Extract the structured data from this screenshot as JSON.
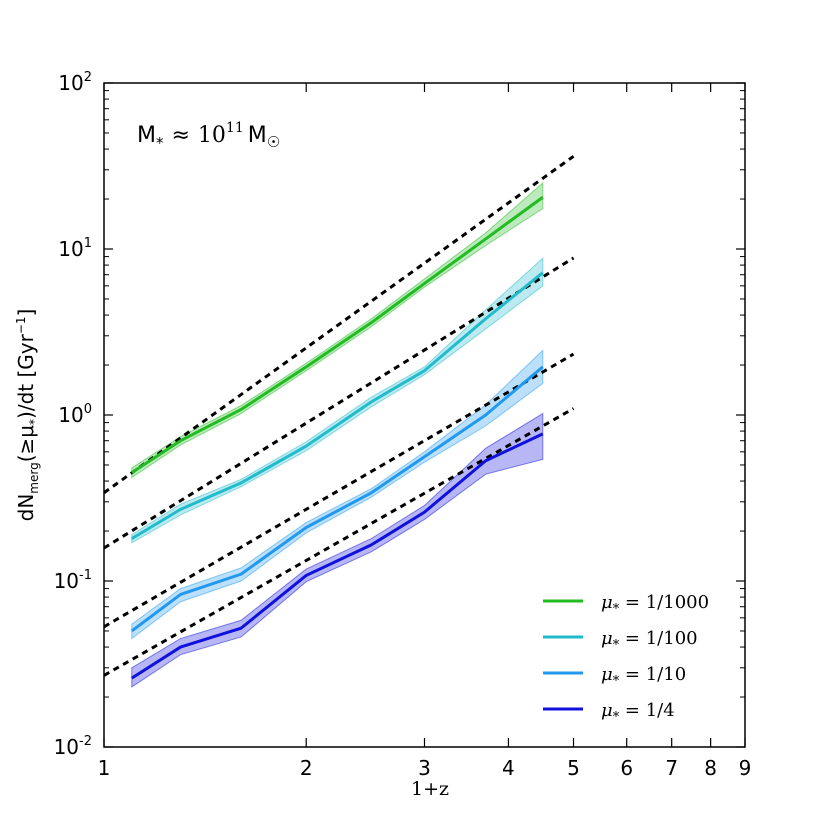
{
  "chart_data": {
    "type": "line",
    "scale": {
      "x": "log",
      "y": "log"
    },
    "xlabel": "1+z",
    "ylabel": "dN_merg(≥μ*)/dt [Gyr⁻¹]",
    "ylabel_parts": {
      "main": "dN",
      "sub": "merg",
      "arg": "(≥μ",
      "arg_sub": "*",
      "close": ")/dt [Gyr",
      "sup": "−1",
      "end": "]"
    },
    "xlim": [
      1,
      9
    ],
    "ylim": [
      0.01,
      100
    ],
    "x_ticks": [
      {
        "value": 1,
        "label": "1"
      },
      {
        "value": 2,
        "label": "2"
      },
      {
        "value": 3,
        "label": "3"
      },
      {
        "value": 4,
        "label": "4"
      },
      {
        "value": 5,
        "label": "5"
      },
      {
        "value": 6,
        "label": "6"
      },
      {
        "value": 7,
        "label": "7"
      },
      {
        "value": 8,
        "label": "8"
      },
      {
        "value": 9,
        "label": "9"
      }
    ],
    "y_ticks": [
      {
        "value": 0.01,
        "base": "10",
        "exp": "-2"
      },
      {
        "value": 0.1,
        "base": "10",
        "exp": "-1"
      },
      {
        "value": 1,
        "base": "10",
        "exp": "0"
      },
      {
        "value": 10,
        "base": "10",
        "exp": "1"
      },
      {
        "value": 100,
        "base": "10",
        "exp": "2"
      }
    ],
    "annotation": {
      "m": "M",
      "sub": "*",
      "approx": "≈",
      "base": "10",
      "exp": "11",
      "unit": "M",
      "unit_sub": "☉"
    },
    "x": [
      1.1,
      1.3,
      1.6,
      2.0,
      2.5,
      3.0,
      3.7,
      4.5
    ],
    "series": [
      {
        "name": "μ* = 1/1000",
        "color": "#22bb22",
        "values": [
          0.45,
          0.7,
          1.08,
          1.95,
          3.6,
          6.2,
          11.5,
          20.5
        ],
        "lower": [
          0.42,
          0.66,
          1.02,
          1.85,
          3.4,
          5.9,
          10.5,
          17.5
        ],
        "upper": [
          0.48,
          0.74,
          1.14,
          2.05,
          3.8,
          6.6,
          12.5,
          25.0
        ],
        "fit": {
          "amp": 0.34,
          "slope": 2.9,
          "x_range": [
            1.0,
            5.0
          ]
        }
      },
      {
        "name": "μ* = 1/100",
        "color": "#22bbcc",
        "values": [
          0.18,
          0.27,
          0.39,
          0.65,
          1.2,
          1.85,
          3.8,
          7.2
        ],
        "lower": [
          0.17,
          0.25,
          0.37,
          0.61,
          1.12,
          1.75,
          3.3,
          6.0
        ],
        "upper": [
          0.19,
          0.29,
          0.41,
          0.69,
          1.28,
          1.95,
          4.3,
          8.8
        ],
        "fit": {
          "amp": 0.158,
          "slope": 2.5,
          "x_range": [
            1.0,
            5.0
          ]
        }
      },
      {
        "name": "μ* = 1/10",
        "color": "#2299ee",
        "values": [
          0.05,
          0.083,
          0.11,
          0.21,
          0.34,
          0.56,
          1.0,
          1.95
        ],
        "lower": [
          0.045,
          0.075,
          0.1,
          0.195,
          0.32,
          0.52,
          0.86,
          1.55
        ],
        "upper": [
          0.055,
          0.09,
          0.12,
          0.225,
          0.36,
          0.6,
          1.15,
          2.45
        ],
        "fit": {
          "amp": 0.053,
          "slope": 2.35,
          "x_range": [
            1.0,
            5.0
          ]
        }
      },
      {
        "name": "μ* = 1/4",
        "color": "#1111dd",
        "values": [
          0.026,
          0.04,
          0.052,
          0.108,
          0.165,
          0.26,
          0.53,
          0.77
        ],
        "lower": [
          0.023,
          0.036,
          0.046,
          0.099,
          0.15,
          0.235,
          0.44,
          0.54
        ],
        "upper": [
          0.03,
          0.045,
          0.058,
          0.118,
          0.18,
          0.285,
          0.63,
          1.02
        ],
        "fit": {
          "amp": 0.027,
          "slope": 2.3,
          "x_range": [
            1.0,
            5.0
          ]
        }
      }
    ],
    "legend": {
      "placement": "lower-right",
      "entries": [
        {
          "label": "μ* = 1/1000",
          "parts": {
            "mu": "μ",
            "sub": "*",
            "rest": " = 1/1000"
          },
          "color": "#22bb22"
        },
        {
          "label": "μ* = 1/100",
          "parts": {
            "mu": "μ",
            "sub": "*",
            "rest": " = 1/100"
          },
          "color": "#22bbcc"
        },
        {
          "label": "μ* = 1/10",
          "parts": {
            "mu": "μ",
            "sub": "*",
            "rest": " = 1/10"
          },
          "color": "#2299ee"
        },
        {
          "label": "μ* = 1/4",
          "parts": {
            "mu": "μ",
            "sub": "*",
            "rest": " = 1/4"
          },
          "color": "#1111dd"
        }
      ]
    },
    "grid": false
  }
}
